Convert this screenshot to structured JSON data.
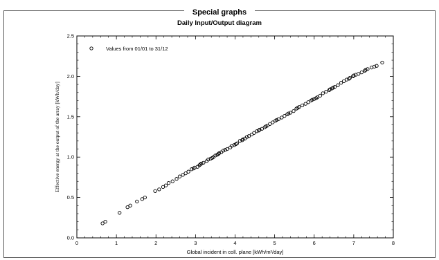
{
  "section_title": "Special graphs",
  "chart_data": {
    "type": "scatter",
    "title": "Daily Input/Output diagram",
    "xlabel": "Global incident in coll. plane [kWh/m²/day]",
    "ylabel": "Effective energy at the output of the array [kWh/day]",
    "xlim": [
      0,
      8
    ],
    "ylim": [
      0.0,
      2.5
    ],
    "xticks": [
      "0",
      "1",
      "2",
      "3",
      "4",
      "5",
      "6",
      "7",
      "8"
    ],
    "yticks": [
      "0.0",
      "0.5",
      "1.0",
      "1.5",
      "2.0",
      "2.5"
    ],
    "grid": false,
    "legend_position": "top-left",
    "marker": "open-circle",
    "marker_color": "#000000",
    "series": [
      {
        "name": "Values from 01/01 to 31/12",
        "points": [
          [
            0.65,
            0.18
          ],
          [
            0.72,
            0.2
          ],
          [
            1.08,
            0.31
          ],
          [
            1.28,
            0.38
          ],
          [
            1.35,
            0.4
          ],
          [
            1.52,
            0.45
          ],
          [
            1.65,
            0.48
          ],
          [
            1.72,
            0.5
          ],
          [
            1.98,
            0.58
          ],
          [
            2.08,
            0.6
          ],
          [
            2.18,
            0.63
          ],
          [
            2.25,
            0.65
          ],
          [
            2.32,
            0.68
          ],
          [
            2.42,
            0.7
          ],
          [
            2.52,
            0.73
          ],
          [
            2.6,
            0.76
          ],
          [
            2.68,
            0.78
          ],
          [
            2.75,
            0.8
          ],
          [
            2.82,
            0.82
          ],
          [
            2.9,
            0.85
          ],
          [
            2.98,
            0.87
          ],
          [
            3.05,
            0.88
          ],
          [
            3.1,
            0.9
          ],
          [
            3.15,
            0.92
          ],
          [
            3.2,
            0.93
          ],
          [
            3.28,
            0.95
          ],
          [
            3.32,
            0.97
          ],
          [
            3.38,
            0.98
          ],
          [
            3.45,
            1.0
          ],
          [
            3.5,
            1.02
          ],
          [
            3.55,
            1.03
          ],
          [
            3.6,
            1.05
          ],
          [
            3.65,
            1.06
          ],
          [
            3.7,
            1.08
          ],
          [
            3.75,
            1.09
          ],
          [
            3.8,
            1.1
          ],
          [
            3.88,
            1.12
          ],
          [
            3.92,
            1.14
          ],
          [
            3.98,
            1.15
          ],
          [
            4.05,
            1.17
          ],
          [
            4.12,
            1.2
          ],
          [
            4.18,
            1.21
          ],
          [
            4.25,
            1.23
          ],
          [
            4.3,
            1.25
          ],
          [
            4.35,
            1.26
          ],
          [
            4.42,
            1.28
          ],
          [
            4.48,
            1.3
          ],
          [
            4.55,
            1.32
          ],
          [
            4.6,
            1.33
          ],
          [
            4.68,
            1.35
          ],
          [
            4.75,
            1.37
          ],
          [
            4.82,
            1.39
          ],
          [
            4.88,
            1.41
          ],
          [
            4.95,
            1.43
          ],
          [
            5.02,
            1.45
          ],
          [
            5.1,
            1.47
          ],
          [
            5.18,
            1.49
          ],
          [
            5.25,
            1.51
          ],
          [
            5.32,
            1.53
          ],
          [
            5.4,
            1.55
          ],
          [
            5.48,
            1.57
          ],
          [
            5.55,
            1.6
          ],
          [
            5.62,
            1.62
          ],
          [
            5.7,
            1.64
          ],
          [
            5.78,
            1.66
          ],
          [
            5.85,
            1.68
          ],
          [
            5.92,
            1.7
          ],
          [
            6.0,
            1.72
          ],
          [
            6.08,
            1.74
          ],
          [
            6.15,
            1.76
          ],
          [
            6.22,
            1.79
          ],
          [
            6.3,
            1.81
          ],
          [
            6.38,
            1.83
          ],
          [
            6.45,
            1.85
          ],
          [
            6.52,
            1.87
          ],
          [
            6.6,
            1.89
          ],
          [
            6.68,
            1.92
          ],
          [
            6.75,
            1.94
          ],
          [
            6.82,
            1.96
          ],
          [
            6.9,
            1.98
          ],
          [
            6.98,
            2.0
          ],
          [
            7.05,
            2.02
          ],
          [
            7.12,
            2.03
          ],
          [
            7.2,
            2.05
          ],
          [
            7.28,
            2.07
          ],
          [
            7.35,
            2.09
          ],
          [
            7.45,
            2.11
          ],
          [
            7.52,
            2.12
          ],
          [
            7.58,
            2.13
          ],
          [
            7.72,
            2.17
          ],
          [
            3.12,
            0.91
          ],
          [
            3.42,
            0.99
          ],
          [
            4.02,
            1.16
          ],
          [
            4.62,
            1.34
          ],
          [
            5.05,
            1.46
          ],
          [
            5.58,
            1.61
          ],
          [
            6.05,
            1.73
          ],
          [
            6.48,
            1.86
          ],
          [
            6.88,
            1.97
          ],
          [
            7.3,
            2.08
          ],
          [
            2.95,
            0.86
          ],
          [
            3.58,
            1.04
          ],
          [
            4.2,
            1.22
          ],
          [
            4.78,
            1.38
          ],
          [
            5.35,
            1.54
          ],
          [
            5.95,
            1.71
          ],
          [
            6.4,
            1.84
          ],
          [
            7.0,
            2.01
          ]
        ]
      }
    ]
  }
}
